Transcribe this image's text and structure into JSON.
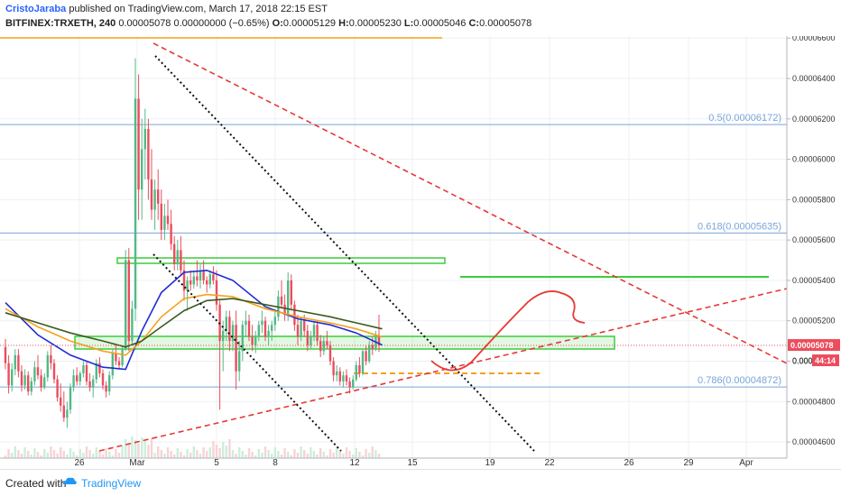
{
  "header": {
    "author": "CristoJaraba",
    "published_text": "published on TradingView.com, March 17, 2018 22:15 EST",
    "symbol": "BITFINEX:TRXETH, 240",
    "quote": "0.00005078 0.00000000 (−0.65%)",
    "o_label": "O:",
    "o_value": "0.00005129",
    "h_label": "H:",
    "h_value": "0.00005230",
    "l_label": "L:",
    "l_value": "0.00005046",
    "c_label": "C:",
    "c_value": "0.00005078"
  },
  "footer": {
    "created_with": "Created with",
    "brand": "TradingView"
  },
  "colors": {
    "up": "#53b987",
    "down": "#eb4d5c",
    "ma_blue": "#1e2bd6",
    "ma_orange": "#f5a21b",
    "ma_green": "#3b5a1f",
    "fib": "#7aa5d9",
    "zone": "#3dcc3d",
    "trend_red": "#e53935",
    "trend_black": "#111111"
  },
  "chart_data": {
    "type": "candlestick",
    "symbol": "BITFINEX:TRXETH",
    "interval": "240",
    "y_axis_ticks": [
      "0.00006600",
      "0.00006400",
      "0.00006200",
      "0.00006000",
      "0.00005800",
      "0.00005600",
      "0.00005400",
      "0.00005200",
      "0.00005000",
      "0.00004800",
      "0.00004600"
    ],
    "ylim": [
      4.52e-05,
      6.61e-05
    ],
    "x_axis_ticks": [
      "26",
      "Mar",
      "5",
      "8",
      "12",
      "15",
      "19",
      "22",
      "26",
      "29",
      "Apr"
    ],
    "fib_levels": [
      {
        "label": "0.5(0.00006172)",
        "value": 6.172e-05
      },
      {
        "label": "0.618(0.00005635)",
        "value": 5.635e-05
      },
      {
        "label": "0.786(0.00004872)",
        "value": 4.872e-05
      }
    ],
    "last_price_label": "0.00005078",
    "last_price_cut_label": "0.000",
    "countdown_label": "44:14",
    "candles_ohlc": [
      [
        5.07e-05,
        5.11e-05,
        4.96e-05,
        4.99e-05
      ],
      [
        4.99e-05,
        5.03e-05,
        4.84e-05,
        4.88e-05
      ],
      [
        4.88e-05,
        4.99e-05,
        4.85e-05,
        4.96e-05
      ],
      [
        4.96e-05,
        5.06e-05,
        4.93e-05,
        5.03e-05
      ],
      [
        5.03e-05,
        5.06e-05,
        4.92e-05,
        4.95e-05
      ],
      [
        4.95e-05,
        4.98e-05,
        4.85e-05,
        4.88e-05
      ],
      [
        4.88e-05,
        4.96e-05,
        4.86e-05,
        4.93e-05
      ],
      [
        4.93e-05,
        4.95e-05,
        4.83e-05,
        4.85e-05
      ],
      [
        4.85e-05,
        4.92e-05,
        4.83e-05,
        4.9e-05
      ],
      [
        4.9e-05,
        5e-05,
        4.88e-05,
        4.97e-05
      ],
      [
        4.97e-05,
        5.03e-05,
        4.91e-05,
        4.93e-05
      ],
      [
        4.93e-05,
        4.96e-05,
        4.85e-05,
        4.87e-05
      ],
      [
        4.87e-05,
        4.94e-05,
        4.86e-05,
        4.92e-05
      ],
      [
        4.92e-05,
        5.05e-05,
        4.9e-05,
        5.03e-05
      ],
      [
        5.03e-05,
        5.08e-05,
        4.96e-05,
        4.99e-05
      ],
      [
        4.99e-05,
        5.01e-05,
        4.89e-05,
        4.91e-05
      ],
      [
        4.91e-05,
        4.93e-05,
        4.8e-05,
        4.82e-05
      ],
      [
        4.82e-05,
        4.89e-05,
        4.75e-05,
        4.78e-05
      ],
      [
        4.78e-05,
        4.85e-05,
        4.7e-05,
        4.72e-05
      ],
      [
        4.72e-05,
        4.8e-05,
        4.67e-05,
        4.76e-05
      ],
      [
        4.76e-05,
        4.89e-05,
        4.74e-05,
        4.87e-05
      ],
      [
        4.87e-05,
        4.96e-05,
        4.85e-05,
        4.93e-05
      ],
      [
        4.93e-05,
        4.97e-05,
        4.88e-05,
        4.9e-05
      ],
      [
        4.9e-05,
        4.95e-05,
        4.88e-05,
        4.94e-05
      ],
      [
        4.94e-05,
        5e-05,
        4.92e-05,
        4.98e-05
      ],
      [
        4.98e-05,
        5e-05,
        4.88e-05,
        4.9e-05
      ],
      [
        4.9e-05,
        4.94e-05,
        4.85e-05,
        4.87e-05
      ],
      [
        4.87e-05,
        4.93e-05,
        4.82e-05,
        4.91e-05
      ],
      [
        4.91e-05,
        5.01e-05,
        4.89e-05,
        4.99e-05
      ],
      [
        4.99e-05,
        5.02e-05,
        4.92e-05,
        4.94e-05
      ],
      [
        4.94e-05,
        4.96e-05,
        4.86e-05,
        4.88e-05
      ],
      [
        4.88e-05,
        4.9e-05,
        4.82e-05,
        4.85e-05
      ],
      [
        4.85e-05,
        4.95e-05,
        4.83e-05,
        4.93e-05
      ],
      [
        4.93e-05,
        5.06e-05,
        4.91e-05,
        5.04e-05
      ],
      [
        5.04e-05,
        5.08e-05,
        4.98e-05,
        5e-05
      ],
      [
        5e-05,
        5.02e-05,
        4.96e-05,
        4.98e-05
      ],
      [
        4.98e-05,
        5.08e-05,
        4.97e-05,
        5.06e-05
      ],
      [
        5.06e-05,
        5.55e-05,
        5.05e-05,
        5.5e-05
      ],
      [
        5.5e-05,
        5.56e-05,
        5.05e-05,
        5.1e-05
      ],
      [
        5.1e-05,
        5.3e-05,
        5.08e-05,
        5.26e-05
      ],
      [
        5.26e-05,
        6.5e-05,
        5.2e-05,
        6.3e-05
      ],
      [
        6.3e-05,
        6.42e-05,
        5.7e-05,
        5.85e-05
      ],
      [
        5.85e-05,
        6.2e-05,
        5.7e-05,
        6.05e-05
      ],
      [
        6.05e-05,
        6.25e-05,
        5.9e-05,
        6.15e-05
      ],
      [
        6.15e-05,
        6.2e-05,
        5.8e-05,
        5.9e-05
      ],
      [
        5.9e-05,
        6.05e-05,
        5.7e-05,
        5.75e-05
      ],
      [
        5.75e-05,
        5.9e-05,
        5.65e-05,
        5.85e-05
      ],
      [
        5.85e-05,
        5.95e-05,
        5.7e-05,
        5.78e-05
      ],
      [
        5.78e-05,
        5.85e-05,
        5.6e-05,
        5.65e-05
      ],
      [
        5.65e-05,
        5.78e-05,
        5.6e-05,
        5.72e-05
      ],
      [
        5.72e-05,
        5.8e-05,
        5.65e-05,
        5.68e-05
      ],
      [
        5.68e-05,
        5.75e-05,
        5.55e-05,
        5.58e-05
      ],
      [
        5.58e-05,
        5.62e-05,
        5.45e-05,
        5.48e-05
      ],
      [
        5.48e-05,
        5.6e-05,
        5.45e-05,
        5.55e-05
      ],
      [
        5.55e-05,
        5.62e-05,
        5.42e-05,
        5.45e-05
      ],
      [
        5.45e-05,
        5.5e-05,
        5.3e-05,
        5.35e-05
      ],
      [
        5.35e-05,
        5.42e-05,
        5.25e-05,
        5.4e-05
      ],
      [
        5.4e-05,
        5.45e-05,
        5.35e-05,
        5.38e-05
      ],
      [
        5.38e-05,
        5.45e-05,
        5.36e-05,
        5.42e-05
      ],
      [
        5.42e-05,
        5.5e-05,
        5.37e-05,
        5.4e-05
      ],
      [
        5.4e-05,
        5.48e-05,
        5.36e-05,
        5.45e-05
      ],
      [
        5.45e-05,
        5.5e-05,
        5.38e-05,
        5.4e-05
      ],
      [
        5.4e-05,
        5.42e-05,
        5.34e-05,
        5.38e-05
      ],
      [
        5.38e-05,
        5.45e-05,
        5.36e-05,
        5.43e-05
      ],
      [
        5.43e-05,
        5.47e-05,
        5.38e-05,
        5.4e-05
      ],
      [
        5.4e-05,
        5.45e-05,
        5.25e-05,
        5.28e-05
      ],
      [
        5.28e-05,
        5.3e-05,
        4.76e-05,
        5.1e-05
      ],
      [
        5.1e-05,
        5.2e-05,
        4.95e-05,
        5.15e-05
      ],
      [
        5.15e-05,
        5.25e-05,
        5.1e-05,
        5.22e-05
      ],
      [
        5.22e-05,
        5.25e-05,
        5.05e-05,
        5.1e-05
      ],
      [
        5.1e-05,
        5.2e-05,
        5.05e-05,
        5.18e-05
      ],
      [
        5.18e-05,
        5.25e-05,
        4.86e-05,
        4.95e-05
      ],
      [
        4.95e-05,
        5.1e-05,
        4.9e-05,
        5.05e-05
      ],
      [
        5.05e-05,
        5.2e-05,
        5e-05,
        5.18e-05
      ],
      [
        5.18e-05,
        5.25e-05,
        5.12e-05,
        5.2e-05
      ],
      [
        5.2e-05,
        5.23e-05,
        5.1e-05,
        5.12e-05
      ],
      [
        5.12e-05,
        5.18e-05,
        5.05e-05,
        5.08e-05
      ],
      [
        5.08e-05,
        5.15e-05,
        5.04e-05,
        5.12e-05
      ],
      [
        5.12e-05,
        5.2e-05,
        5.1e-05,
        5.18e-05
      ],
      [
        5.18e-05,
        5.25e-05,
        5.14e-05,
        5.2e-05
      ],
      [
        5.2e-05,
        5.22e-05,
        5.1e-05,
        5.12e-05
      ],
      [
        5.12e-05,
        5.18e-05,
        5.08e-05,
        5.15e-05
      ],
      [
        5.15e-05,
        5.2e-05,
        5.1e-05,
        5.18e-05
      ],
      [
        5.18e-05,
        5.25e-05,
        5.15e-05,
        5.22e-05
      ],
      [
        5.22e-05,
        5.35e-05,
        5.2e-05,
        5.32e-05
      ],
      [
        5.32e-05,
        5.4e-05,
        5.26e-05,
        5.28e-05
      ],
      [
        5.28e-05,
        5.33e-05,
        5.2e-05,
        5.23e-05
      ],
      [
        5.23e-05,
        5.44e-05,
        5.2e-05,
        5.4e-05
      ],
      [
        5.4e-05,
        5.43e-05,
        5.25e-05,
        5.28e-05
      ],
      [
        5.28e-05,
        5.3e-05,
        5.15e-05,
        5.18e-05
      ],
      [
        5.18e-05,
        5.23e-05,
        5.08e-05,
        5.12e-05
      ],
      [
        5.12e-05,
        5.22e-05,
        5.1e-05,
        5.2e-05
      ],
      [
        5.2e-05,
        5.23e-05,
        5.12e-05,
        5.15e-05
      ],
      [
        5.15e-05,
        5.18e-05,
        5.05e-05,
        5.08e-05
      ],
      [
        5.08e-05,
        5.15e-05,
        5.06e-05,
        5.12e-05
      ],
      [
        5.12e-05,
        5.2e-05,
        5.1e-05,
        5.18e-05
      ],
      [
        5.18e-05,
        5.2e-05,
        5.08e-05,
        5.1e-05
      ],
      [
        5.1e-05,
        5.13e-05,
        5.02e-05,
        5.05e-05
      ],
      [
        5.05e-05,
        5.12e-05,
        5.03e-05,
        5.1e-05
      ],
      [
        5.1e-05,
        5.15e-05,
        5.06e-05,
        5.08e-05
      ],
      [
        5.08e-05,
        5.1e-05,
        4.98e-05,
        5e-05
      ],
      [
        5e-05,
        5.02e-05,
        4.9e-05,
        4.93e-05
      ],
      [
        4.93e-05,
        4.98e-05,
        4.9e-05,
        4.95e-05
      ],
      [
        4.95e-05,
        4.97e-05,
        4.88e-05,
        4.9e-05
      ],
      [
        4.9e-05,
        4.95e-05,
        4.87e-05,
        4.93e-05
      ],
      [
        4.93e-05,
        4.96e-05,
        4.88e-05,
        4.9e-05
      ],
      [
        4.9e-05,
        4.92e-05,
        4.84e-05,
        4.87e-05
      ],
      [
        4.87e-05,
        4.93e-05,
        4.86e-05,
        4.91e-05
      ],
      [
        4.91e-05,
        5e-05,
        4.9e-05,
        4.98e-05
      ],
      [
        4.98e-05,
        5.02e-05,
        4.92e-05,
        4.94e-05
      ],
      [
        4.94e-05,
        5.06e-05,
        4.93e-05,
        5.05e-05
      ],
      [
        5.05e-05,
        5.08e-05,
        4.98e-05,
        5e-05
      ],
      [
        5e-05,
        5.1e-05,
        4.99e-05,
        5.08e-05
      ],
      [
        5.08e-05,
        5.12e-05,
        5.03e-05,
        5.06e-05
      ],
      [
        5.06e-05,
        5.15e-05,
        5.05e-05,
        5.129e-05
      ],
      [
        5.129e-05,
        5.23e-05,
        5.046e-05,
        5.078e-05
      ]
    ],
    "moving_averages": [
      {
        "name": "blue",
        "points": [
          [
            0,
            5.29e-05
          ],
          [
            10,
            5.13e-05
          ],
          [
            20,
            5.03e-05
          ],
          [
            30,
            4.97e-05
          ],
          [
            37,
            4.96e-05
          ],
          [
            42,
            5.15e-05
          ],
          [
            48,
            5.34e-05
          ],
          [
            55,
            5.44e-05
          ],
          [
            62,
            5.45e-05
          ],
          [
            70,
            5.4e-05
          ],
          [
            80,
            5.27e-05
          ],
          [
            90,
            5.21e-05
          ],
          [
            100,
            5.18e-05
          ],
          [
            108,
            5.14e-05
          ],
          [
            116,
            5.08e-05
          ]
        ]
      },
      {
        "name": "orange",
        "points": [
          [
            0,
            5.26e-05
          ],
          [
            10,
            5.17e-05
          ],
          [
            20,
            5.1e-05
          ],
          [
            30,
            5.05e-05
          ],
          [
            37,
            5.03e-05
          ],
          [
            42,
            5.1e-05
          ],
          [
            48,
            5.22e-05
          ],
          [
            55,
            5.31e-05
          ],
          [
            62,
            5.33e-05
          ],
          [
            70,
            5.32e-05
          ],
          [
            80,
            5.26e-05
          ],
          [
            90,
            5.22e-05
          ],
          [
            100,
            5.19e-05
          ],
          [
            108,
            5.16e-05
          ],
          [
            116,
            5.12e-05
          ]
        ]
      },
      {
        "name": "green",
        "points": [
          [
            0,
            5.24e-05
          ],
          [
            10,
            5.19e-05
          ],
          [
            20,
            5.14e-05
          ],
          [
            30,
            5.1e-05
          ],
          [
            37,
            5.07e-05
          ],
          [
            42,
            5.1e-05
          ],
          [
            48,
            5.17e-05
          ],
          [
            55,
            5.25e-05
          ],
          [
            62,
            5.3e-05
          ],
          [
            70,
            5.31e-05
          ],
          [
            80,
            5.28e-05
          ],
          [
            90,
            5.25e-05
          ],
          [
            100,
            5.22e-05
          ],
          [
            108,
            5.19e-05
          ],
          [
            116,
            5.16e-05
          ]
        ]
      }
    ]
  }
}
